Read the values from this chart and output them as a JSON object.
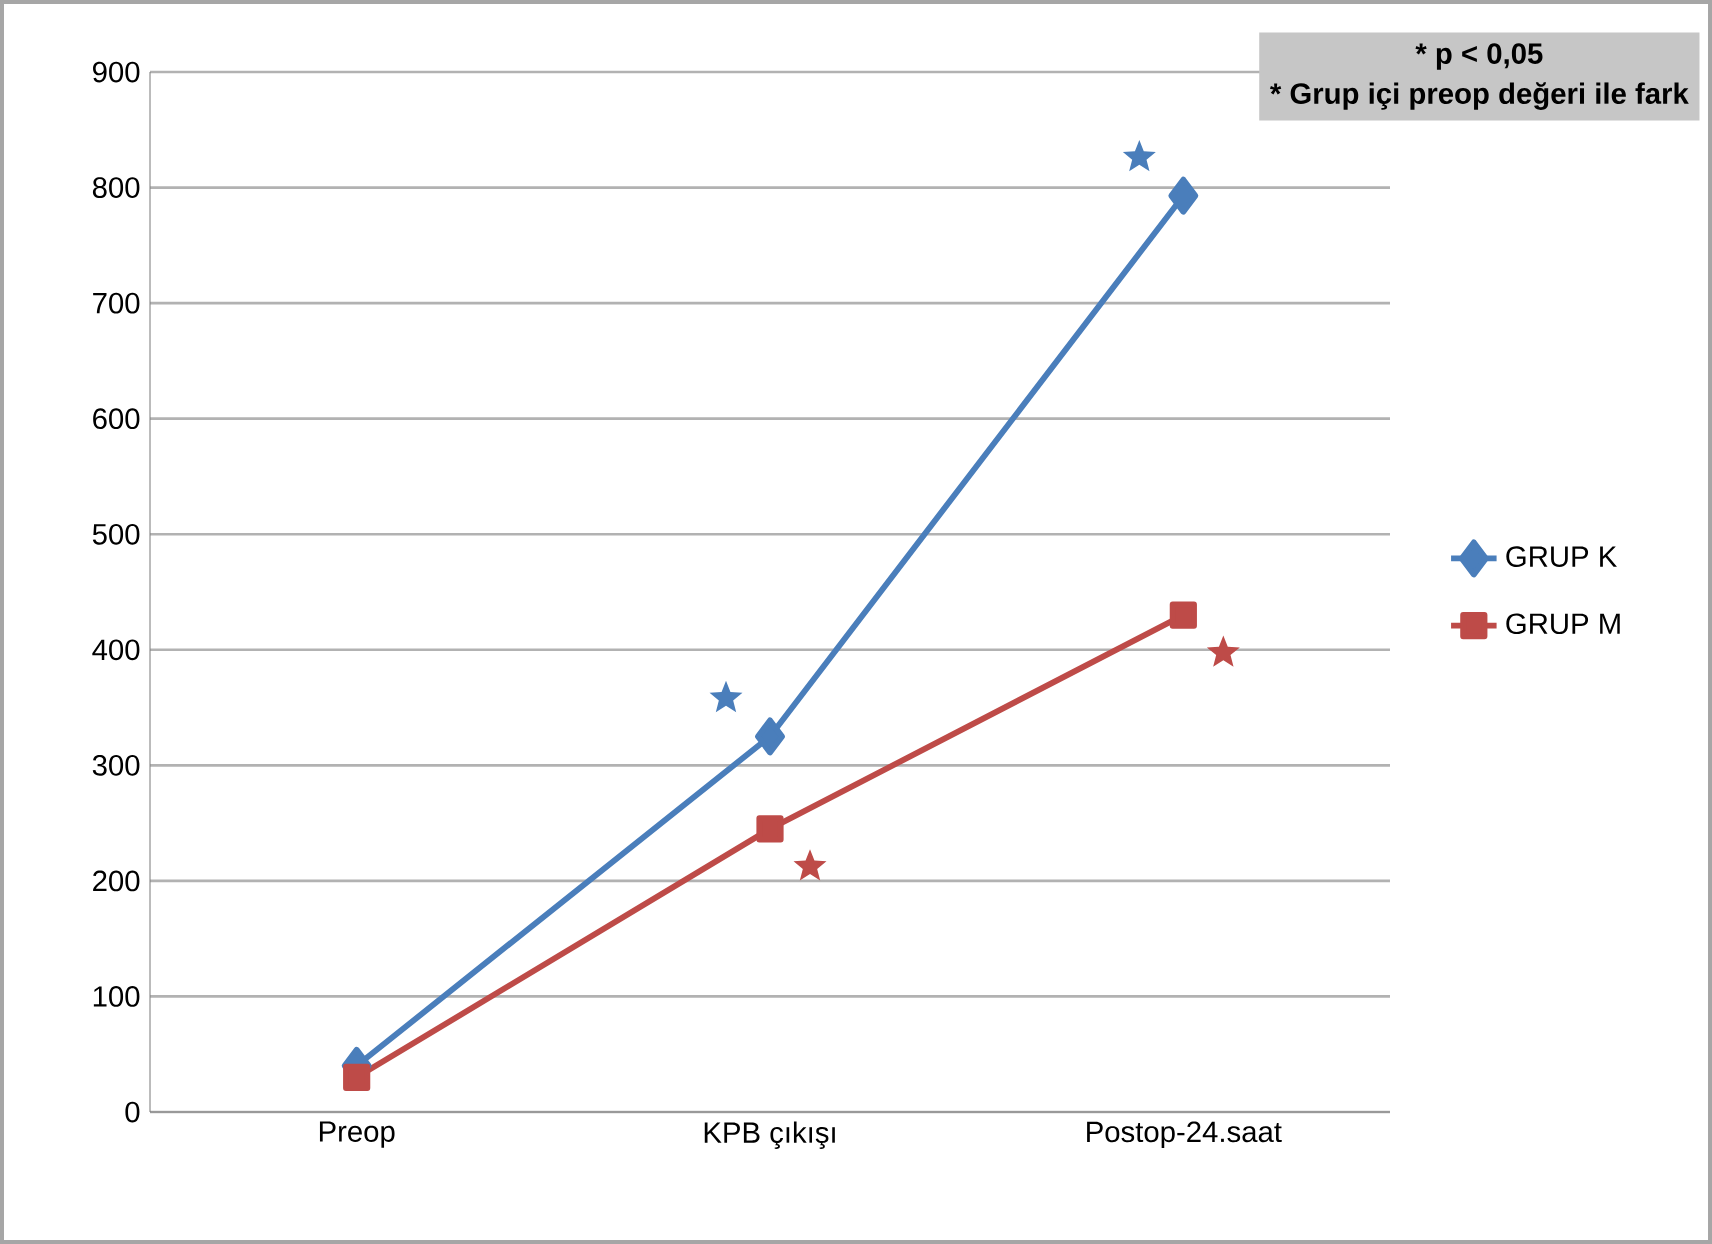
{
  "chart_data": {
    "type": "line",
    "categories": [
      "Preop",
      "KPB çıkışı",
      "Postop-24.saat"
    ],
    "series": [
      {
        "name": "GRUP K",
        "color": "#4a7ebb",
        "marker": "diamond",
        "values": [
          40,
          325,
          793
        ]
      },
      {
        "name": "GRUP M",
        "color": "#be4b48",
        "marker": "square",
        "values": [
          30,
          245,
          430
        ]
      }
    ],
    "ylim": [
      0,
      900
    ],
    "yticks": [
      0,
      100,
      200,
      300,
      400,
      500,
      600,
      700,
      800,
      900
    ],
    "grid": "y",
    "legend": "right",
    "annotations": [
      "* p < 0,05",
      "* Grup içi preop değeri ile fark"
    ]
  }
}
